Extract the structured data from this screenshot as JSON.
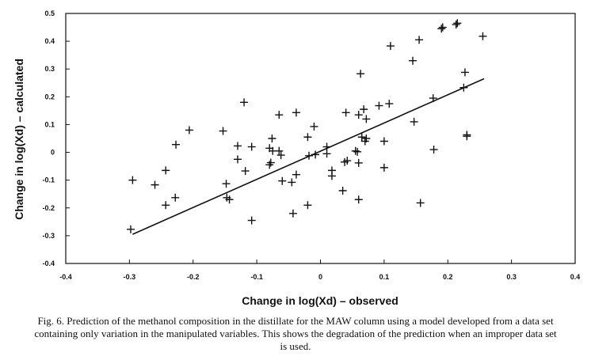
{
  "chart_data": {
    "type": "scatter",
    "title": "",
    "xlabel": "Change in log(Xd) – observed",
    "ylabel": "Change in log(Xd) – calculated",
    "xlim": [
      -0.4,
      0.4
    ],
    "ylim": [
      -0.4,
      0.5
    ],
    "x_ticks": [
      -0.4,
      -0.3,
      -0.2,
      -0.1,
      0,
      0.1,
      0.2,
      0.3,
      0.4
    ],
    "y_ticks": [
      -0.4,
      -0.3,
      -0.2,
      -0.1,
      0,
      0.1,
      0.2,
      0.3,
      0.4,
      0.5
    ],
    "x_tick_labels": [
      "-0.4",
      "-0.3",
      "-0.2",
      "-0.1",
      "0",
      "0.1",
      "0.2",
      "0.3",
      "0.4"
    ],
    "y_tick_labels": [
      "-0.4",
      "-0.3",
      "-0.2",
      "-0.1",
      "0",
      "0.1",
      "0.2",
      "0.3",
      "0.4",
      "0.5"
    ],
    "grid": false,
    "marker": "plus",
    "points": [
      [
        -0.295,
        -0.1
      ],
      [
        -0.298,
        -0.277
      ],
      [
        -0.26,
        -0.117
      ],
      [
        -0.243,
        -0.065
      ],
      [
        -0.243,
        -0.19
      ],
      [
        -0.227,
        0.028
      ],
      [
        -0.228,
        -0.163
      ],
      [
        -0.206,
        0.08
      ],
      [
        -0.153,
        0.077
      ],
      [
        -0.148,
        -0.113
      ],
      [
        -0.147,
        -0.163
      ],
      [
        -0.143,
        -0.17
      ],
      [
        -0.13,
        0.023
      ],
      [
        -0.13,
        -0.025
      ],
      [
        -0.12,
        0.18
      ],
      [
        -0.118,
        -0.067
      ],
      [
        -0.108,
        0.02
      ],
      [
        -0.108,
        -0.245
      ],
      [
        -0.08,
        0.015
      ],
      [
        -0.08,
        -0.045
      ],
      [
        -0.078,
        -0.037
      ],
      [
        -0.076,
        0.05
      ],
      [
        -0.075,
        0.005
      ],
      [
        -0.065,
        0.135
      ],
      [
        -0.065,
        0.005
      ],
      [
        -0.062,
        -0.01
      ],
      [
        -0.06,
        -0.103
      ],
      [
        -0.045,
        -0.108
      ],
      [
        -0.043,
        -0.22
      ],
      [
        -0.038,
        0.143
      ],
      [
        -0.038,
        -0.08
      ],
      [
        -0.02,
        0.055
      ],
      [
        -0.018,
        -0.012
      ],
      [
        -0.02,
        -0.19
      ],
      [
        -0.01,
        0.093
      ],
      [
        -0.008,
        -0.008
      ],
      [
        0.01,
        0.02
      ],
      [
        0.01,
        -0.005
      ],
      [
        0.018,
        -0.065
      ],
      [
        0.018,
        -0.085
      ],
      [
        0.035,
        -0.138
      ],
      [
        0.038,
        -0.035
      ],
      [
        0.04,
        0.143
      ],
      [
        0.042,
        -0.03
      ],
      [
        0.055,
        0.005
      ],
      [
        0.058,
        0.002
      ],
      [
        0.06,
        0.135
      ],
      [
        0.06,
        -0.038
      ],
      [
        0.06,
        -0.17
      ],
      [
        0.063,
        0.283
      ],
      [
        0.065,
        0.055
      ],
      [
        0.068,
        0.155
      ],
      [
        0.07,
        0.04
      ],
      [
        0.072,
        0.12
      ],
      [
        0.072,
        0.05
      ],
      [
        0.092,
        0.168
      ],
      [
        0.1,
        0.04
      ],
      [
        0.1,
        -0.055
      ],
      [
        0.108,
        0.175
      ],
      [
        0.11,
        0.383
      ],
      [
        0.145,
        0.33
      ],
      [
        0.147,
        0.11
      ],
      [
        0.155,
        0.405
      ],
      [
        0.157,
        -0.182
      ],
      [
        0.177,
        0.195
      ],
      [
        0.178,
        0.01
      ],
      [
        0.19,
        0.445
      ],
      [
        0.192,
        0.45
      ],
      [
        0.213,
        0.46
      ],
      [
        0.215,
        0.465
      ],
      [
        0.225,
        0.233
      ],
      [
        0.227,
        0.288
      ],
      [
        0.23,
        0.063
      ],
      [
        0.23,
        0.058
      ],
      [
        0.255,
        0.418
      ]
    ],
    "fit_line": [
      [
        -0.295,
        -0.295
      ],
      [
        0.257,
        0.265
      ]
    ]
  },
  "caption": "Fig. 6. Prediction of the methanol composition in the distillate for the MAW column using a model developed from a data set containing only variation in the manipulated variables. This shows the degradation of the prediction when an improper data set is used."
}
